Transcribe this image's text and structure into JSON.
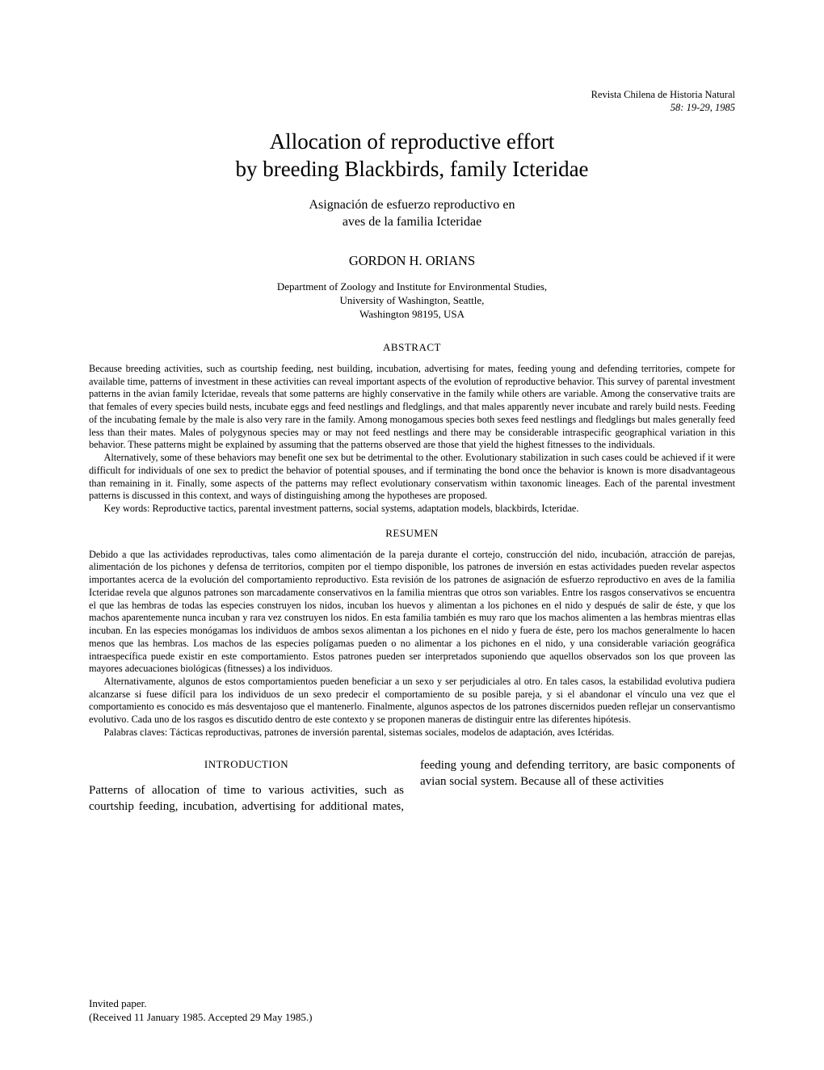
{
  "journal": {
    "name": "Revista Chilena de Historia Natural",
    "citation": "58: 19-29, 1985"
  },
  "title_en_l1": "Allocation of reproductive effort",
  "title_en_l2": "by breeding Blackbirds, family Icteridae",
  "title_es_l1": "Asignación de esfuerzo reproductivo en",
  "title_es_l2": "aves de la familia Icteridae",
  "author": "GORDON H. ORIANS",
  "affil_l1": "Department of Zoology and Institute for Environmental Studies,",
  "affil_l2": "University of Washington, Seattle,",
  "affil_l3": "Washington 98195, USA",
  "abstract": {
    "heading": "ABSTRACT",
    "p1": "Because breeding activities, such as courtship feeding, nest building, incubation, advertising for mates, feeding young and defending territories, compete for available time, patterns of investment in these activities can reveal important aspects of the evolution of reproductive behavior. This survey of parental investment patterns in the avian family Icteridae, reveals that some patterns are highly conservative in the family while others are variable. Among the conservative traits are that females of every species build nests, incubate eggs and feed nestlings and fledglings, and that males apparently never incubate and rarely build nests. Feeding of the incubating female by the male is also very rare in the family. Among monogamous species both sexes feed nestlings and fledglings but males generally feed less than their mates. Males of polygynous species may or may not feed nestlings and there may be considerable intraspecific geographical variation in this behavior. These patterns might be explained by assuming that the patterns observed are those that yield the highest fitnesses to the individuals.",
    "p2": "Alternatively, some of these behaviors may benefit one sex but be detrimental to the other. Evolutionary stabilization in such cases could be achieved if it were difficult for individuals of one sex to predict the behavior of potential spouses, and if terminating the bond once the behavior is known is more disadvantageous than remaining in it. Finally, some aspects of the patterns may reflect evolutionary conservatism within taxonomic lineages. Each of the parental investment patterns is discussed in this context, and ways of distinguishing among the hypotheses are proposed.",
    "keywords": "Key words: Reproductive tactics, parental investment patterns, social systems, adaptation models, blackbirds, Icteridae."
  },
  "resumen": {
    "heading": "RESUMEN",
    "p1": "Debido a que las actividades reproductivas, tales como alimentación de la pareja durante el cortejo, construcción del nido, incubación, atracción de parejas, alimentación de los pichones y defensa de territorios, compiten por el tiempo disponible, los patrones de inversión en estas actividades pueden revelar aspectos importantes acerca de la evolución del comportamiento reproductivo. Esta revisión de los patrones de asignación de esfuerzo reproductivo en aves de la familia Icteridae revela que algunos patrones son marcadamente conservativos en la familia mientras que otros son variables. Entre los rasgos conservativos se encuentra el que las hembras de todas las especies construyen los nidos, incuban los huevos y alimentan a los pichones en el nido y después de salir de éste, y que los machos aparentemente nunca incuban y rara vez construyen los nidos. En esta familia también es muy raro que los machos alimenten a las hembras mientras ellas incuban. En las especies monógamas los individuos de ambos sexos alimentan a los pichones en el nido y fuera de éste, pero los machos generalmente lo hacen menos que las hembras. Los machos de las especies polígamas pueden o no alimentar a los pichones en el nido, y una considerable variación geográfica intraespecífica puede existir en este comportamiento. Estos patrones pueden ser interpretados suponiendo que aquellos observados son los que proveen las mayores adecuaciones biológicas (fitnesses) a los individuos.",
    "p2": "Alternativamente, algunos de estos comportamientos pueden beneficiar a un sexo y ser perjudiciales al otro. En tales casos, la estabilidad evolutiva pudiera alcanzarse si fuese difícil para los individuos de un sexo predecir el comportamiento de su posible pareja, y si el abandonar el vínculo una vez que el comportamiento es conocido es más desventajoso que el mantenerlo. Finalmente, algunos aspectos de los patrones discernidos pueden reflejar un conservantismo evolutivo. Cada uno de los rasgos es discutido dentro de este contexto y se proponen maneras de distinguir entre las diferentes hipótesis.",
    "keywords": "Palabras claves: Tácticas reproductivas, patrones de inversión parental, sistemas sociales, modelos de adaptación, aves Ictéridas."
  },
  "intro": {
    "heading": "INTRODUCTION",
    "body": "Patterns of allocation of time to various activities, such as courtship feeding, incubation, advertising for additional mates, feeding young and defending territory, are basic components of avian social system. Because all of these activities"
  },
  "footer": {
    "invited": "Invited paper.",
    "received": "(Received 11 January 1985. Accepted 29 May 1985.)"
  }
}
